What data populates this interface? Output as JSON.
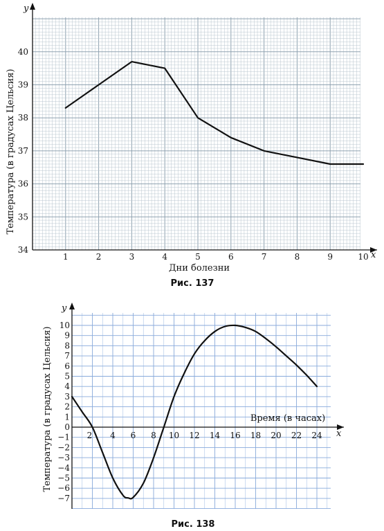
{
  "chart_data": [
    {
      "type": "line",
      "caption": "Рис. 137",
      "xvar": "x",
      "yvar": "y",
      "xlabel": "Дни болезни",
      "ylabel": "Температура (в градусах Цельсия)",
      "xlim": [
        0,
        10.5
      ],
      "ylim": [
        34,
        40.9
      ],
      "xticks": [
        1,
        2,
        3,
        4,
        5,
        6,
        7,
        8,
        9,
        10
      ],
      "yticks": [
        34,
        35,
        36,
        37,
        38,
        39,
        40
      ],
      "x": [
        1,
        2,
        3,
        4,
        5,
        6,
        7,
        8,
        9,
        10
      ],
      "y": [
        38.3,
        39.0,
        39.7,
        39.5,
        38.0,
        37.4,
        37.0,
        36.8,
        36.6,
        36.6
      ],
      "grid": true
    },
    {
      "type": "line",
      "caption": "Рис. 138",
      "xvar": "x",
      "yvar": "y",
      "xlabel": "Время (в часах)",
      "ylabel": "Температура (в градусах Цельсия)",
      "xlim": [
        0,
        26.5
      ],
      "ylim": [
        -8,
        11
      ],
      "xticks": [
        2,
        4,
        6,
        8,
        10,
        12,
        14,
        16,
        18,
        20,
        22,
        24
      ],
      "yticks": [
        -7,
        -6,
        -5,
        -4,
        -3,
        -2,
        -1,
        0,
        1,
        2,
        3,
        4,
        5,
        6,
        7,
        8,
        9,
        10
      ],
      "x": [
        0,
        1,
        2,
        3,
        4,
        5,
        5.5,
        6,
        7,
        8,
        9,
        10,
        11,
        12,
        13,
        14,
        15,
        16,
        17,
        18,
        19,
        20,
        21,
        22,
        23,
        24
      ],
      "y": [
        3,
        1.5,
        0,
        -2.5,
        -5,
        -6.7,
        -6.95,
        -6.9,
        -5.5,
        -3,
        0,
        3,
        5.3,
        7.2,
        8.5,
        9.4,
        9.9,
        10,
        9.8,
        9.4,
        8.7,
        7.9,
        7,
        6.1,
        5.1,
        4
      ],
      "grid": true
    }
  ]
}
